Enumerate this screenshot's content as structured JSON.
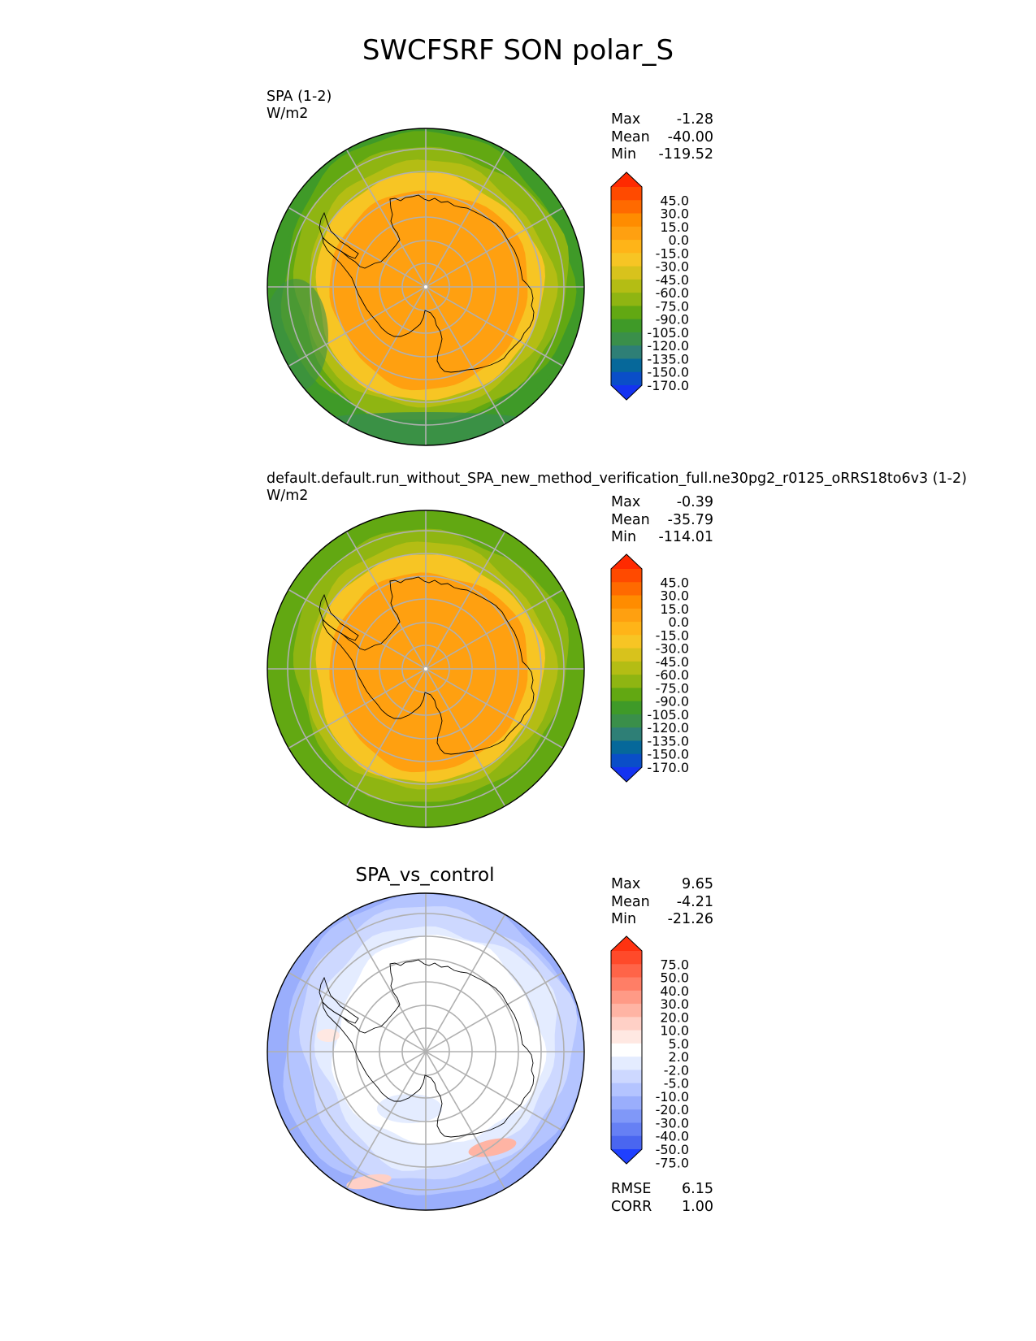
{
  "figure": {
    "title": "SWCFSRF SON polar_S"
  },
  "panels": [
    {
      "title_line1": "SPA (1-2)",
      "title_line2": "W/m2",
      "stats": [
        {
          "label": "Max",
          "value": "-1.28"
        },
        {
          "label": "Mean",
          "value": "-40.00"
        },
        {
          "label": "Min",
          "value": "-119.52"
        }
      ]
    },
    {
      "title_line1": "default.default.run_without_SPA_new_method_verification_full.ne30pg2_r0125_oRRS18to6v3 (1-2)",
      "title_line2": "W/m2",
      "stats": [
        {
          "label": "Max",
          "value": "-0.39"
        },
        {
          "label": "Mean",
          "value": "-35.79"
        },
        {
          "label": "Min",
          "value": "-114.01"
        }
      ]
    },
    {
      "title_center": "SPA_vs_control",
      "stats": [
        {
          "label": "Max",
          "value": "9.65"
        },
        {
          "label": "Mean",
          "value": "-4.21"
        },
        {
          "label": "Min",
          "value": "-21.26"
        }
      ],
      "metrics": [
        {
          "label": "RMSE",
          "value": "6.15"
        },
        {
          "label": "CORR",
          "value": "1.00"
        }
      ]
    }
  ],
  "chart_data": [
    {
      "type": "heatmap",
      "projection": "south-polar-stereographic",
      "colorbar": {
        "ticks": [
          "45.0",
          "30.0",
          "15.0",
          "0.0",
          "-15.0",
          "-30.0",
          "-45.0",
          "-60.0",
          "-75.0",
          "-90.0",
          "-105.0",
          "-120.0",
          "-135.0",
          "-150.0",
          "-170.0"
        ],
        "colors": [
          "#ff2a00",
          "#ff4a00",
          "#ff6a00",
          "#ff8c00",
          "#ffa010",
          "#ffb418",
          "#f7c524",
          "#d8c21c",
          "#b4bd14",
          "#8fb512",
          "#62a812",
          "#3f9a28",
          "#3a8f4a",
          "#2e7f76",
          "#06689a",
          "#0a4ec8",
          "#1433f0"
        ],
        "extend": "both"
      },
      "grid": true
    },
    {
      "type": "heatmap",
      "projection": "south-polar-stereographic",
      "colorbar": {
        "ticks": [
          "45.0",
          "30.0",
          "15.0",
          "0.0",
          "-15.0",
          "-30.0",
          "-45.0",
          "-60.0",
          "-75.0",
          "-90.0",
          "-105.0",
          "-120.0",
          "-135.0",
          "-150.0",
          "-170.0"
        ],
        "colors": [
          "#ff2a00",
          "#ff4a00",
          "#ff6a00",
          "#ff8c00",
          "#ffa010",
          "#ffb418",
          "#f7c524",
          "#d8c21c",
          "#b4bd14",
          "#8fb512",
          "#62a812",
          "#3f9a28",
          "#3a8f4a",
          "#2e7f76",
          "#06689a",
          "#0a4ec8",
          "#1433f0"
        ],
        "extend": "both"
      },
      "grid": true
    },
    {
      "type": "heatmap",
      "projection": "south-polar-stereographic",
      "colorbar": {
        "ticks": [
          "75.0",
          "50.0",
          "40.0",
          "30.0",
          "20.0",
          "10.0",
          "5.0",
          "2.0",
          "-2.0",
          "-5.0",
          "-10.0",
          "-20.0",
          "-30.0",
          "-40.0",
          "-50.0",
          "-75.0"
        ],
        "colors": [
          "#ff3210",
          "#ff4a2a",
          "#ff6448",
          "#ff7e66",
          "#ff9a86",
          "#ffb4a4",
          "#ffd0c6",
          "#ffe8e2",
          "#ffffff",
          "#e4ecff",
          "#cdd8ff",
          "#b4c4ff",
          "#9aaefc",
          "#8098f8",
          "#6680f4",
          "#4a66f0",
          "#1f40ff"
        ],
        "extend": "both"
      },
      "grid": true
    }
  ]
}
